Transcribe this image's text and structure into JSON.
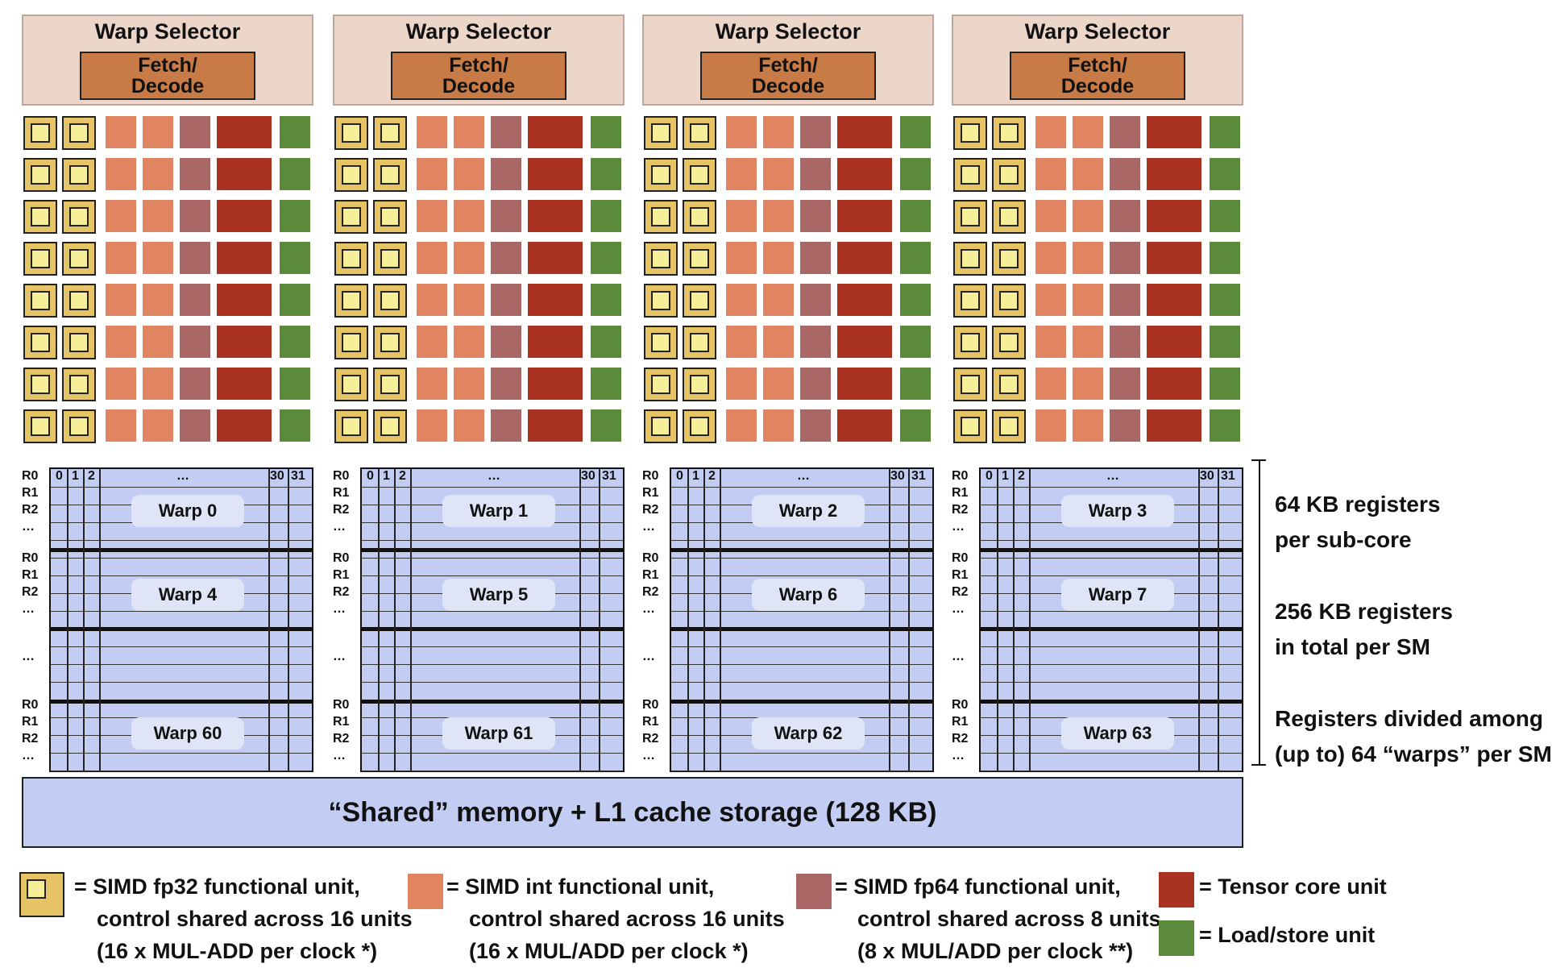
{
  "subcores": [
    {
      "warp_selector": "Warp Selector",
      "fetch_line1": "Fetch/",
      "fetch_line2": "Decode",
      "warps": [
        "Warp 0",
        "Warp 4",
        "Warp 60"
      ]
    },
    {
      "warp_selector": "Warp Selector",
      "fetch_line1": "Fetch/",
      "fetch_line2": "Decode",
      "warps": [
        "Warp 1",
        "Warp 5",
        "Warp 61"
      ]
    },
    {
      "warp_selector": "Warp Selector",
      "fetch_line1": "Fetch/",
      "fetch_line2": "Decode",
      "warps": [
        "Warp 2",
        "Warp 6",
        "Warp 62"
      ]
    },
    {
      "warp_selector": "Warp Selector",
      "fetch_line1": "Fetch/",
      "fetch_line2": "Decode",
      "warps": [
        "Warp 3",
        "Warp 7",
        "Warp 63"
      ]
    }
  ],
  "register_columns": [
    "0",
    "1",
    "2",
    "…",
    "30",
    "31"
  ],
  "register_rows": [
    "R0",
    "R1",
    "R2",
    "…"
  ],
  "ellipsis": "…",
  "shared_memory": "“Shared” memory + L1 cache storage (128 KB)",
  "side_notes": [
    {
      "line1": "64 KB registers",
      "line2": "per sub-core"
    },
    {
      "line1": "256 KB registers",
      "line2": "in total per SM"
    },
    {
      "line1": "Registers divided among",
      "line2": "(up to) 64 “warps” per SM"
    }
  ],
  "legend": {
    "fp32": [
      "= SIMD fp32 functional unit,",
      "control shared across 16 units",
      "(16 x MUL-ADD per clock *)"
    ],
    "int": [
      "= SIMD int functional unit,",
      "control shared across 16 units",
      "(16 x MUL/ADD per clock *)"
    ],
    "fp64": [
      "= SIMD fp64 functional unit,",
      "control shared across 8 units",
      "(8 x MUL/ADD per clock **)"
    ],
    "tensor": "= Tensor core unit",
    "loadstore": "= Load/store unit"
  },
  "colors": {
    "warp_selector": "#ecd6ca",
    "fetch_decode": "#c97b47",
    "fp32": "#e6c465",
    "int": "#e18462",
    "fp64": "#a96766",
    "tensor": "#a93220",
    "loadstore": "#5b8a3a",
    "register_file": "#c3cdf3"
  }
}
